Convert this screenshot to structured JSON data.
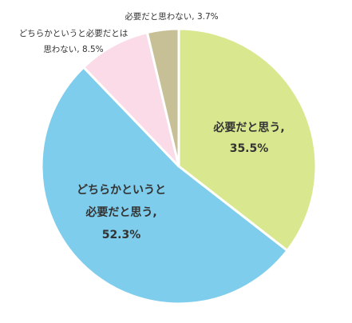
{
  "chart_data": {
    "type": "pie",
    "start_angle_deg": 0,
    "direction": "clockwise",
    "slices": [
      {
        "label_lines": [
          "必要だと思う,",
          "35.5%"
        ],
        "value": 35.5,
        "color": "#d9e88f",
        "label_position": "inside"
      },
      {
        "label_lines": [
          "どちらかというと",
          "必要だと思う,",
          "52.3%"
        ],
        "value": 52.3,
        "color": "#7ecdec",
        "label_position": "inside"
      },
      {
        "label_lines": [
          "どちらかというと必要だとは",
          "思わない, 8.5%"
        ],
        "value": 8.5,
        "color": "#fadbe7",
        "label_position": "outside"
      },
      {
        "label_lines": [
          "必要だと思わない, 3.7%"
        ],
        "value": 3.7,
        "color": "#c7bf96",
        "label_position": "outside"
      }
    ]
  }
}
